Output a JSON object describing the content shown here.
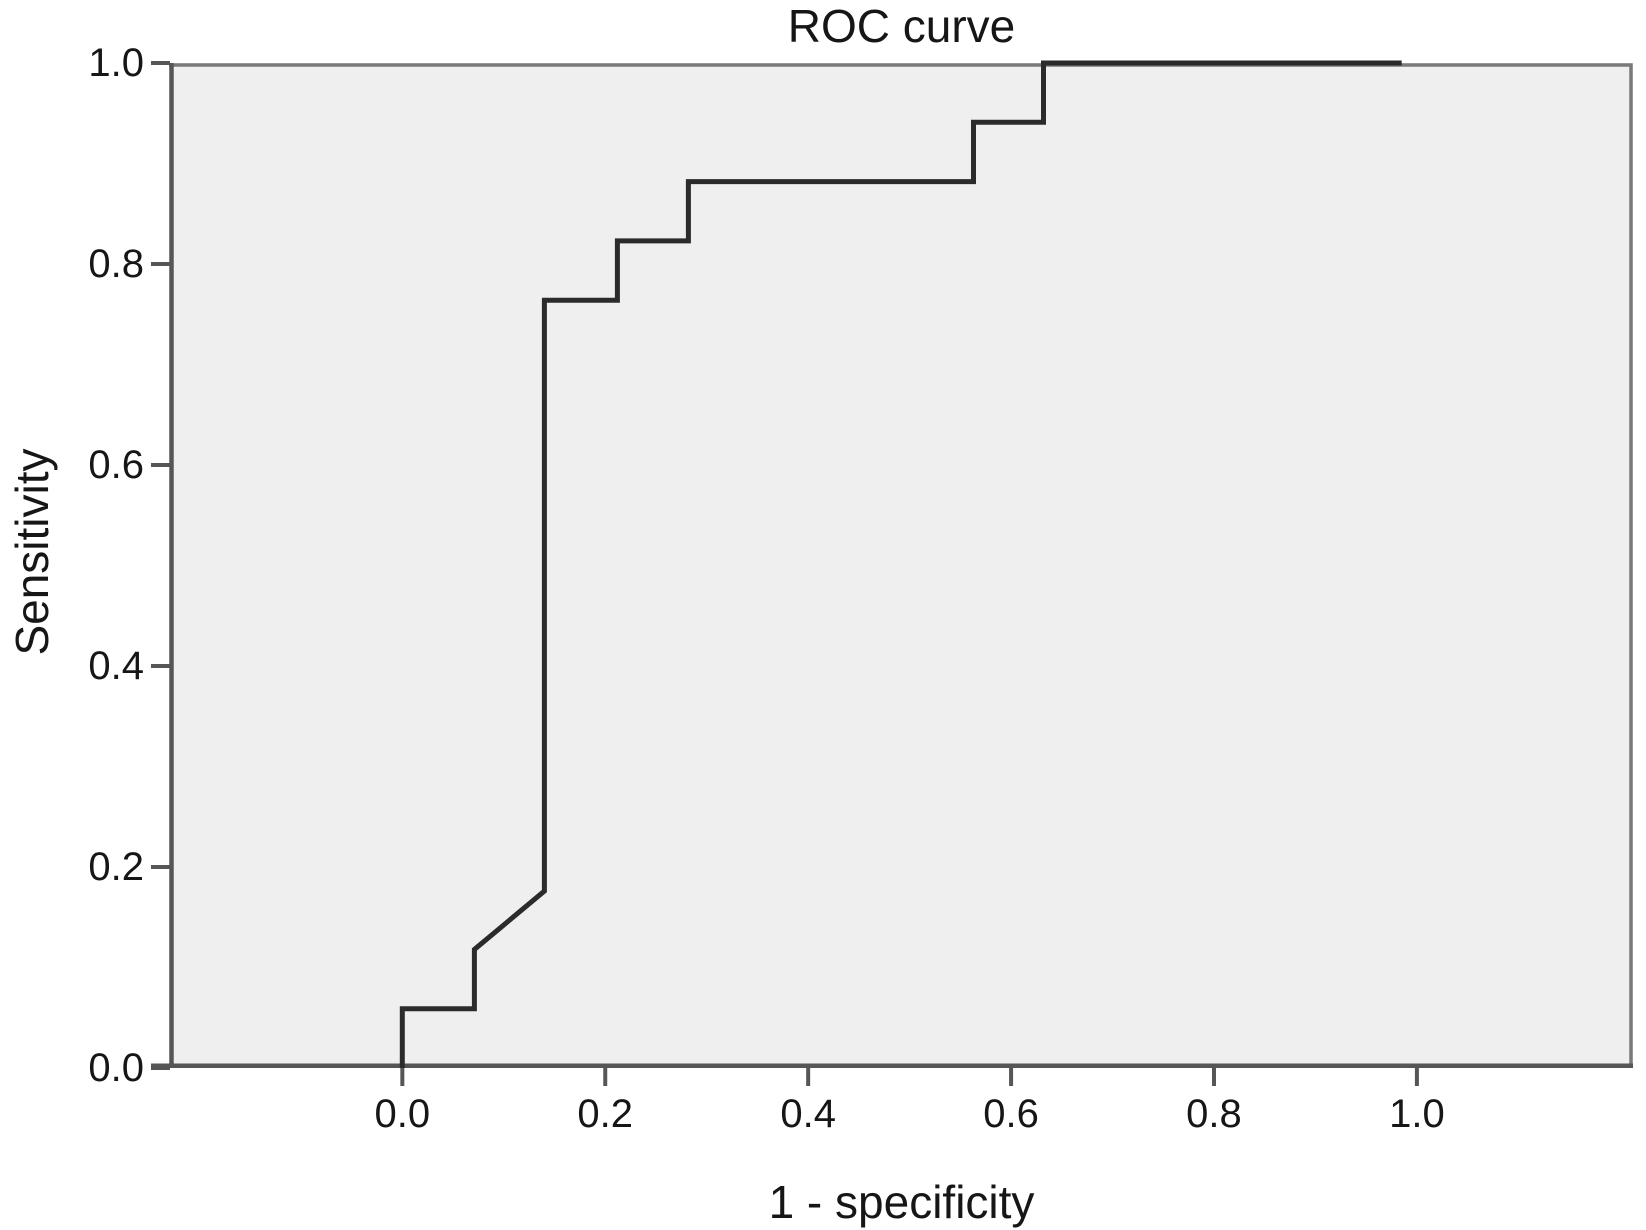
{
  "chart_data": {
    "type": "line",
    "subtype": "roc-step-curve",
    "title": "ROC curve",
    "xlabel": "1 - specificity",
    "ylabel": "Sensitivity",
    "x_ticks": [
      0.0,
      0.2,
      0.4,
      0.6,
      0.8,
      1.0
    ],
    "y_ticks": [
      0.0,
      0.2,
      0.4,
      0.6,
      0.8,
      1.0
    ],
    "x_tick_labels": [
      "0.0",
      "0.2",
      "0.4",
      "0.6",
      "0.8",
      "1.0"
    ],
    "y_tick_labels": [
      "0.0",
      "0.2",
      "0.4",
      "0.6",
      "0.8",
      "1.0"
    ],
    "xlim_drawn": [
      -0.229,
      1.213
    ],
    "ylim_drawn": [
      0.0,
      1.0
    ],
    "grid": false,
    "legend": false,
    "colors": {
      "plot_background": "#efefef",
      "page_background": "#ffffff",
      "border": "#7a7a7a",
      "axis": "#565656",
      "curve": "#2b2b2b",
      "text": "#161616"
    },
    "series": [
      {
        "name": "ROC curve",
        "points": [
          [
            0.0,
            0.0
          ],
          [
            0.0,
            0.059
          ],
          [
            0.071,
            0.059
          ],
          [
            0.071,
            0.118
          ],
          [
            0.14,
            0.176
          ],
          [
            0.14,
            0.764
          ],
          [
            0.212,
            0.764
          ],
          [
            0.212,
            0.823
          ],
          [
            0.282,
            0.823
          ],
          [
            0.282,
            0.882
          ],
          [
            0.563,
            0.882
          ],
          [
            0.563,
            0.941
          ],
          [
            0.632,
            0.941
          ],
          [
            0.632,
            1.0
          ],
          [
            0.985,
            1.0
          ]
        ]
      }
    ]
  }
}
